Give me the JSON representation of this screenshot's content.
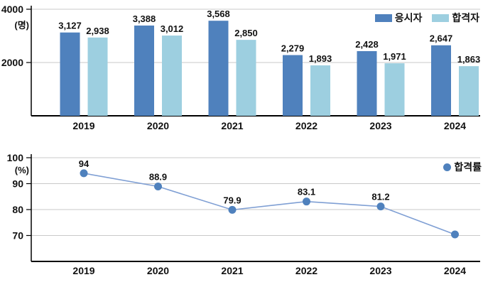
{
  "chart_data": [
    {
      "type": "bar",
      "title": "",
      "ylabel": "(명)",
      "categories": [
        "2019",
        "2020",
        "2021",
        "2022",
        "2023",
        "2024"
      ],
      "series": [
        {
          "name": "응시자",
          "color": "#4f81bd",
          "values": [
            3127,
            3388,
            3568,
            2279,
            2428,
            2647
          ],
          "labels": [
            "3,127",
            "3,388",
            "3,568",
            "2,279",
            "2,428",
            "2,647"
          ]
        },
        {
          "name": "합격자",
          "color": "#9dcfe0",
          "values": [
            2938,
            3012,
            2850,
            1893,
            1971,
            1863
          ],
          "labels": [
            "2,938",
            "3,012",
            "2,850",
            "1,893",
            "1,971",
            "1,863"
          ]
        }
      ],
      "ylim": [
        0,
        4000
      ],
      "yticks": [
        2000,
        4000
      ],
      "grid": true,
      "legend_position": "top-right"
    },
    {
      "type": "line",
      "title": "",
      "ylabel": "(%)",
      "categories": [
        "2019",
        "2020",
        "2021",
        "2022",
        "2023",
        "2024"
      ],
      "series": [
        {
          "name": "합격률",
          "color": "#4f81bd",
          "line_color": "#7f9fd4",
          "values": [
            94,
            88.9,
            79.9,
            83.1,
            81.2,
            70.4
          ],
          "labels": [
            "94",
            "88.9",
            "79.9",
            "83.1",
            "81.2",
            ""
          ]
        }
      ],
      "ylim": [
        60,
        100
      ],
      "yticks": [
        70,
        80,
        90,
        100
      ],
      "grid": true,
      "legend_position": "right"
    }
  ],
  "colors": {
    "grid": "#c9c9c9",
    "axis": "#000000",
    "text": "#111111"
  }
}
